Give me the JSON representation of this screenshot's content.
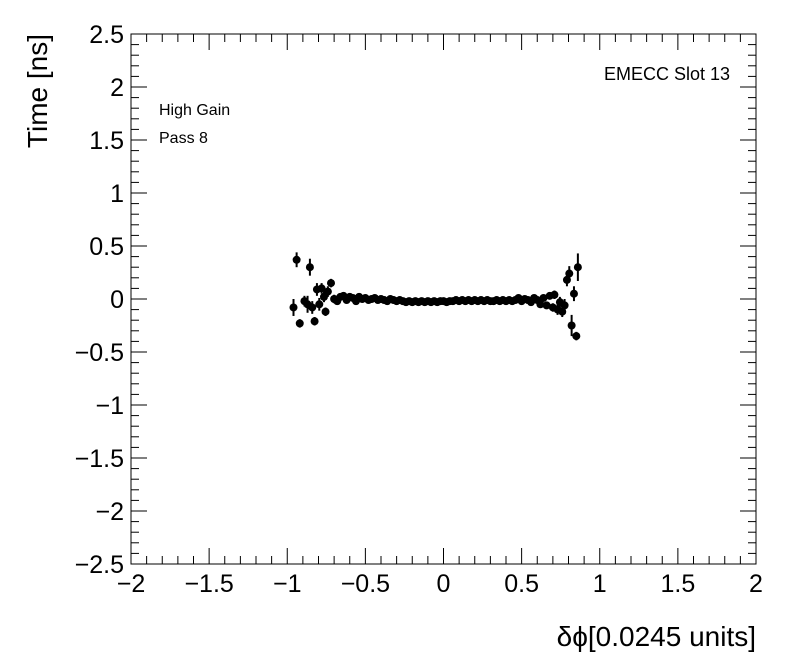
{
  "chart_data": {
    "type": "scatter",
    "xlabel": "δϕ[0.0245 units]",
    "ylabel": "Time [ns]",
    "xlim": [
      -2,
      2
    ],
    "ylim": [
      -2.5,
      2.5
    ],
    "x_ticks": [
      -2,
      -1.5,
      -1,
      -0.5,
      0,
      0.5,
      1,
      1.5,
      2
    ],
    "x_tick_labels": [
      "−2",
      "−1.5",
      "−1",
      "−0.5",
      "0",
      "0.5",
      "1",
      "1.5",
      "2"
    ],
    "y_ticks": [
      -2.5,
      -2,
      -1.5,
      -1,
      -0.5,
      0,
      0.5,
      1,
      1.5,
      2,
      2.5
    ],
    "y_tick_labels": [
      "−2.5",
      "−2",
      "−1.5",
      "−1",
      "−0.5",
      "0",
      "0.5",
      "1",
      "1.5",
      "2",
      "2.5"
    ],
    "annotations": {
      "top_left": [
        "High Gain",
        "Pass 8"
      ],
      "top_right": "EMECC Slot 13"
    },
    "grid": false,
    "marker_color": "#000000",
    "points": [
      {
        "x": -0.96,
        "y": -0.08,
        "err": 0.08
      },
      {
        "x": -0.94,
        "y": 0.37,
        "err": 0.07
      },
      {
        "x": -0.92,
        "y": -0.23,
        "err": 0.04
      },
      {
        "x": -0.89,
        "y": -0.02,
        "err": 0.05
      },
      {
        "x": -0.87,
        "y": -0.05,
        "err": 0.08
      },
      {
        "x": -0.855,
        "y": 0.3,
        "err": 0.08
      },
      {
        "x": -0.84,
        "y": -0.08,
        "err": 0.06
      },
      {
        "x": -0.825,
        "y": -0.21,
        "err": 0.04
      },
      {
        "x": -0.81,
        "y": 0.09,
        "err": 0.06
      },
      {
        "x": -0.795,
        "y": -0.05,
        "err": 0.06
      },
      {
        "x": -0.78,
        "y": 0.1,
        "err": 0.05
      },
      {
        "x": -0.765,
        "y": 0.02,
        "err": 0.05
      },
      {
        "x": -0.755,
        "y": -0.12,
        "err": 0.04
      },
      {
        "x": -0.74,
        "y": 0.07,
        "err": 0.05
      },
      {
        "x": -0.72,
        "y": 0.15,
        "err": 0.04
      },
      {
        "x": -0.7,
        "y": 0.0,
        "err": 0.04
      },
      {
        "x": -0.68,
        "y": -0.02,
        "err": 0.03
      },
      {
        "x": -0.66,
        "y": 0.02,
        "err": 0.03
      },
      {
        "x": -0.64,
        "y": 0.03,
        "err": 0.03
      },
      {
        "x": -0.62,
        "y": -0.01,
        "err": 0.02
      },
      {
        "x": -0.6,
        "y": 0.02,
        "err": 0.02
      },
      {
        "x": -0.58,
        "y": 0.01,
        "err": 0.02
      },
      {
        "x": -0.56,
        "y": -0.02,
        "err": 0.02
      },
      {
        "x": -0.54,
        "y": 0.02,
        "err": 0.02
      },
      {
        "x": -0.52,
        "y": 0.0,
        "err": 0.02
      },
      {
        "x": -0.5,
        "y": 0.01,
        "err": 0.02
      },
      {
        "x": -0.48,
        "y": -0.01,
        "err": 0.02
      },
      {
        "x": -0.46,
        "y": 0.0,
        "err": 0.02
      },
      {
        "x": -0.44,
        "y": 0.01,
        "err": 0.02
      },
      {
        "x": -0.42,
        "y": -0.01,
        "err": 0.02
      },
      {
        "x": -0.4,
        "y": 0.0,
        "err": 0.02
      },
      {
        "x": -0.38,
        "y": -0.01,
        "err": 0.02
      },
      {
        "x": -0.36,
        "y": -0.02,
        "err": 0.02
      },
      {
        "x": -0.34,
        "y": 0.0,
        "err": 0.02
      },
      {
        "x": -0.32,
        "y": -0.01,
        "err": 0.02
      },
      {
        "x": -0.3,
        "y": -0.02,
        "err": 0.02
      },
      {
        "x": -0.28,
        "y": -0.01,
        "err": 0.02
      },
      {
        "x": -0.26,
        "y": -0.02,
        "err": 0.02
      },
      {
        "x": -0.24,
        "y": -0.03,
        "err": 0.02
      },
      {
        "x": -0.22,
        "y": -0.02,
        "err": 0.02
      },
      {
        "x": -0.2,
        "y": -0.03,
        "err": 0.02
      },
      {
        "x": -0.18,
        "y": -0.02,
        "err": 0.02
      },
      {
        "x": -0.16,
        "y": -0.03,
        "err": 0.02
      },
      {
        "x": -0.14,
        "y": -0.02,
        "err": 0.02
      },
      {
        "x": -0.12,
        "y": -0.03,
        "err": 0.02
      },
      {
        "x": -0.1,
        "y": -0.02,
        "err": 0.02
      },
      {
        "x": -0.08,
        "y": -0.03,
        "err": 0.02
      },
      {
        "x": -0.06,
        "y": -0.02,
        "err": 0.02
      },
      {
        "x": -0.04,
        "y": -0.03,
        "err": 0.02
      },
      {
        "x": -0.02,
        "y": -0.02,
        "err": 0.02
      },
      {
        "x": 0.0,
        "y": -0.02,
        "err": 0.02
      },
      {
        "x": 0.02,
        "y": -0.03,
        "err": 0.02
      },
      {
        "x": 0.04,
        "y": -0.02,
        "err": 0.02
      },
      {
        "x": 0.06,
        "y": -0.02,
        "err": 0.02
      },
      {
        "x": 0.08,
        "y": -0.01,
        "err": 0.02
      },
      {
        "x": 0.1,
        "y": -0.02,
        "err": 0.02
      },
      {
        "x": 0.12,
        "y": -0.01,
        "err": 0.02
      },
      {
        "x": 0.14,
        "y": -0.02,
        "err": 0.02
      },
      {
        "x": 0.16,
        "y": -0.01,
        "err": 0.02
      },
      {
        "x": 0.18,
        "y": -0.02,
        "err": 0.02
      },
      {
        "x": 0.2,
        "y": -0.01,
        "err": 0.02
      },
      {
        "x": 0.22,
        "y": -0.02,
        "err": 0.02
      },
      {
        "x": 0.24,
        "y": -0.01,
        "err": 0.02
      },
      {
        "x": 0.26,
        "y": -0.02,
        "err": 0.02
      },
      {
        "x": 0.28,
        "y": -0.01,
        "err": 0.02
      },
      {
        "x": 0.3,
        "y": -0.02,
        "err": 0.02
      },
      {
        "x": 0.32,
        "y": -0.02,
        "err": 0.02
      },
      {
        "x": 0.34,
        "y": -0.01,
        "err": 0.02
      },
      {
        "x": 0.36,
        "y": -0.02,
        "err": 0.02
      },
      {
        "x": 0.38,
        "y": -0.01,
        "err": 0.02
      },
      {
        "x": 0.4,
        "y": -0.02,
        "err": 0.02
      },
      {
        "x": 0.42,
        "y": -0.01,
        "err": 0.02
      },
      {
        "x": 0.44,
        "y": -0.02,
        "err": 0.02
      },
      {
        "x": 0.46,
        "y": -0.01,
        "err": 0.02
      },
      {
        "x": 0.48,
        "y": 0.01,
        "err": 0.02
      },
      {
        "x": 0.5,
        "y": -0.02,
        "err": 0.02
      },
      {
        "x": 0.52,
        "y": 0.0,
        "err": 0.02
      },
      {
        "x": 0.54,
        "y": -0.01,
        "err": 0.02
      },
      {
        "x": 0.56,
        "y": -0.03,
        "err": 0.02
      },
      {
        "x": 0.58,
        "y": 0.01,
        "err": 0.02
      },
      {
        "x": 0.6,
        "y": -0.01,
        "err": 0.02
      },
      {
        "x": 0.62,
        "y": -0.05,
        "err": 0.03
      },
      {
        "x": 0.64,
        "y": 0.01,
        "err": 0.03
      },
      {
        "x": 0.66,
        "y": -0.06,
        "err": 0.03
      },
      {
        "x": 0.68,
        "y": 0.03,
        "err": 0.03
      },
      {
        "x": 0.7,
        "y": -0.08,
        "err": 0.04
      },
      {
        "x": 0.71,
        "y": 0.04,
        "err": 0.04
      },
      {
        "x": 0.73,
        "y": -0.1,
        "err": 0.05
      },
      {
        "x": 0.745,
        "y": -0.03,
        "err": 0.05
      },
      {
        "x": 0.76,
        "y": -0.12,
        "err": 0.05
      },
      {
        "x": 0.775,
        "y": -0.06,
        "err": 0.06
      },
      {
        "x": 0.79,
        "y": 0.18,
        "err": 0.06
      },
      {
        "x": 0.805,
        "y": 0.24,
        "err": 0.07
      },
      {
        "x": 0.82,
        "y": -0.25,
        "err": 0.1
      },
      {
        "x": 0.835,
        "y": 0.05,
        "err": 0.07
      },
      {
        "x": 0.85,
        "y": -0.35,
        "err": 0.04
      },
      {
        "x": 0.86,
        "y": 0.3,
        "err": 0.13
      }
    ]
  }
}
